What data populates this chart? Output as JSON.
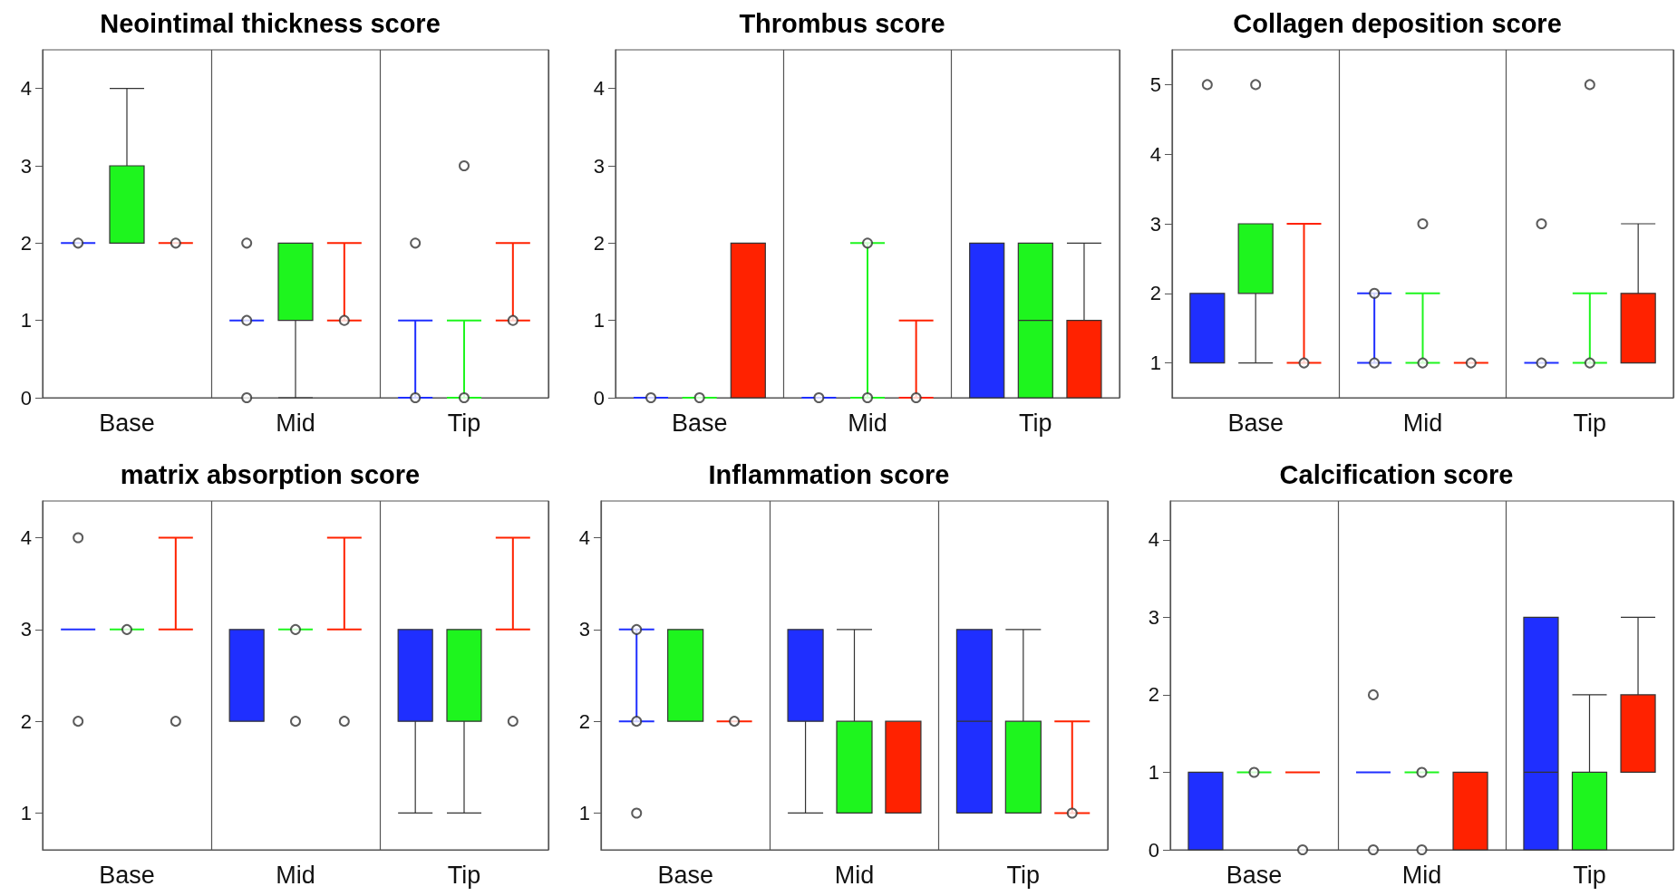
{
  "chart_data": [
    {
      "type": "box",
      "title": "Neointimal thickness score",
      "categories": [
        "Base",
        "Mid",
        "Tip"
      ],
      "ylim": [
        0,
        4.5
      ],
      "yticks": [
        0,
        1,
        2,
        3,
        4
      ],
      "grid": "x",
      "series": [
        {
          "color": "#1f2fff",
          "boxes": [
            {
              "low": 2,
              "q1": 2,
              "median": 2,
              "q3": 2,
              "high": 2,
              "outliers": [
                2
              ]
            },
            {
              "low": 1,
              "q1": 1,
              "median": 1,
              "q3": 1,
              "high": 1,
              "outliers": [
                2,
                1,
                0
              ]
            },
            {
              "low": 0,
              "q1": 0,
              "median": 0,
              "q3": 0,
              "high": 1,
              "outliers": [
                2,
                0
              ]
            }
          ]
        },
        {
          "color": "#1ef51e",
          "boxes": [
            {
              "low": 2,
              "q1": 2,
              "median": 2,
              "q3": 3,
              "high": 4
            },
            {
              "low": 0,
              "q1": 1,
              "median": 1,
              "q3": 2,
              "high": 2
            },
            {
              "low": 0,
              "q1": 0,
              "median": 0,
              "q3": 0,
              "high": 1,
              "outliers": [
                3,
                0
              ]
            }
          ]
        },
        {
          "color": "#ff2200",
          "boxes": [
            {
              "low": 2,
              "q1": 2,
              "median": 2,
              "q3": 2,
              "high": 2,
              "outliers": [
                2
              ]
            },
            {
              "low": 1,
              "q1": 1,
              "median": 1,
              "q3": 1,
              "high": 2,
              "outliers": [
                1
              ]
            },
            {
              "low": 1,
              "q1": 1,
              "median": 1,
              "q3": 1,
              "high": 2,
              "outliers": [
                1
              ]
            }
          ]
        }
      ]
    },
    {
      "type": "box",
      "title": "Thrombus score",
      "categories": [
        "Base",
        "Mid",
        "Tip"
      ],
      "ylim": [
        0,
        4.5
      ],
      "yticks": [
        0,
        1,
        2,
        3,
        4
      ],
      "grid": "x",
      "series": [
        {
          "color": "#1f2fff",
          "boxes": [
            {
              "low": 0,
              "q1": 0,
              "median": 0,
              "q3": 0,
              "high": 0,
              "outliers": [
                0
              ]
            },
            {
              "low": 0,
              "q1": 0,
              "median": 0,
              "q3": 0,
              "high": 0,
              "outliers": [
                0
              ]
            },
            {
              "low": 0,
              "q1": 0,
              "median": 0,
              "q3": 2,
              "high": 2
            }
          ]
        },
        {
          "color": "#1ef51e",
          "boxes": [
            {
              "low": 0,
              "q1": 0,
              "median": 0,
              "q3": 0,
              "high": 0,
              "outliers": [
                0
              ]
            },
            {
              "low": 0,
              "q1": 0,
              "median": 0,
              "q3": 0,
              "high": 2,
              "outliers": [
                2,
                0
              ]
            },
            {
              "low": 0,
              "q1": 0,
              "median": 1,
              "q3": 2,
              "high": 2
            }
          ]
        },
        {
          "color": "#ff2200",
          "boxes": [
            {
              "low": 0,
              "q1": 0,
              "median": 0,
              "q3": 2,
              "high": 2
            },
            {
              "low": 0,
              "q1": 0,
              "median": 0,
              "q3": 0,
              "high": 1,
              "outliers": [
                0
              ]
            },
            {
              "low": 0,
              "q1": 0,
              "median": 0,
              "q3": 1,
              "high": 2
            }
          ]
        }
      ]
    },
    {
      "type": "box",
      "title": "Collagen deposition score",
      "categories": [
        "Base",
        "Mid",
        "Tip"
      ],
      "ylim": [
        0.5,
        5.5
      ],
      "yticks": [
        1,
        2,
        3,
        4,
        5
      ],
      "grid": "x",
      "series": [
        {
          "color": "#1f2fff",
          "boxes": [
            {
              "low": 1,
              "q1": 1,
              "median": 1,
              "q3": 2,
              "high": 2,
              "outliers": [
                5
              ]
            },
            {
              "low": 1,
              "q1": 1,
              "median": 1,
              "q3": 1,
              "high": 2,
              "outliers": [
                2,
                1
              ]
            },
            {
              "low": 1,
              "q1": 1,
              "median": 1,
              "q3": 1,
              "high": 1,
              "outliers": [
                3,
                1
              ]
            }
          ]
        },
        {
          "color": "#1ef51e",
          "boxes": [
            {
              "low": 1,
              "q1": 2,
              "median": 2,
              "q3": 3,
              "high": 3,
              "outliers": [
                5
              ]
            },
            {
              "low": 1,
              "q1": 1,
              "median": 1,
              "q3": 1,
              "high": 2,
              "outliers": [
                3,
                1
              ]
            },
            {
              "low": 1,
              "q1": 1,
              "median": 1,
              "q3": 1,
              "high": 2,
              "outliers": [
                5,
                1
              ]
            }
          ]
        },
        {
          "color": "#ff2200",
          "boxes": [
            {
              "low": 1,
              "q1": 1,
              "median": 1,
              "q3": 1,
              "high": 3,
              "outliers": [
                1
              ]
            },
            {
              "low": 1,
              "q1": 1,
              "median": 1,
              "q3": 1,
              "high": 1,
              "outliers": [
                1
              ]
            },
            {
              "low": 1,
              "q1": 1,
              "median": 1,
              "q3": 2,
              "high": 3
            }
          ]
        }
      ]
    },
    {
      "type": "box",
      "title": "matrix absorption score",
      "categories": [
        "Base",
        "Mid",
        "Tip"
      ],
      "ylim": [
        0.6,
        4.4
      ],
      "yticks": [
        1,
        2,
        3,
        4
      ],
      "grid": "x",
      "series": [
        {
          "color": "#1f2fff",
          "boxes": [
            {
              "low": 3,
              "q1": 3,
              "median": 3,
              "q3": 3,
              "high": 3,
              "outliers": [
                4,
                2
              ]
            },
            {
              "low": 2,
              "q1": 2,
              "median": 3,
              "q3": 3,
              "high": 3
            },
            {
              "low": 1,
              "q1": 2,
              "median": 3,
              "q3": 3,
              "high": 3
            }
          ]
        },
        {
          "color": "#1ef51e",
          "boxes": [
            {
              "low": 3,
              "q1": 3,
              "median": 3,
              "q3": 3,
              "high": 3,
              "outliers": [
                3
              ]
            },
            {
              "low": 3,
              "q1": 3,
              "median": 3,
              "q3": 3,
              "high": 3,
              "outliers": [
                3,
                2
              ]
            },
            {
              "low": 1,
              "q1": 2,
              "median": 3,
              "q3": 3,
              "high": 3
            }
          ]
        },
        {
          "color": "#ff2200",
          "boxes": [
            {
              "low": 3,
              "q1": 3,
              "median": 3,
              "q3": 3,
              "high": 4,
              "outliers": [
                2
              ]
            },
            {
              "low": 3,
              "q1": 3,
              "median": 3,
              "q3": 3,
              "high": 4,
              "outliers": [
                2
              ]
            },
            {
              "low": 3,
              "q1": 3,
              "median": 3,
              "q3": 3,
              "high": 4,
              "outliers": [
                2
              ]
            }
          ]
        }
      ]
    },
    {
      "type": "box",
      "title": "Inflammation score",
      "categories": [
        "Base",
        "Mid",
        "Tip"
      ],
      "ylim": [
        0.6,
        4.4
      ],
      "yticks": [
        1,
        2,
        3,
        4
      ],
      "grid": "x",
      "series": [
        {
          "color": "#1f2fff",
          "boxes": [
            {
              "low": 2,
              "q1": 2,
              "median": 2,
              "q3": 2,
              "high": 3,
              "outliers": [
                3,
                2,
                1
              ]
            },
            {
              "low": 1,
              "q1": 2,
              "median": 3,
              "q3": 3,
              "high": 3
            },
            {
              "low": 1,
              "q1": 1,
              "median": 2,
              "q3": 3,
              "high": 3
            }
          ]
        },
        {
          "color": "#1ef51e",
          "boxes": [
            {
              "low": 2,
              "q1": 2,
              "median": 2,
              "q3": 3,
              "high": 3
            },
            {
              "low": 1,
              "q1": 1,
              "median": 1,
              "q3": 2,
              "high": 3
            },
            {
              "low": 1,
              "q1": 1,
              "median": 1,
              "q3": 2,
              "high": 3
            }
          ]
        },
        {
          "color": "#ff2200",
          "boxes": [
            {
              "low": 2,
              "q1": 2,
              "median": 2,
              "q3": 2,
              "high": 2,
              "outliers": [
                2
              ]
            },
            {
              "low": 1,
              "q1": 1,
              "median": 1,
              "q3": 2,
              "high": 2
            },
            {
              "low": 1,
              "q1": 1,
              "median": 1,
              "q3": 1,
              "high": 2,
              "outliers": [
                1
              ]
            }
          ]
        }
      ]
    },
    {
      "type": "box",
      "title": "Calcification score",
      "categories": [
        "Base",
        "Mid",
        "Tip"
      ],
      "ylim": [
        0,
        4.5
      ],
      "yticks": [
        0,
        1,
        2,
        3,
        4
      ],
      "grid": "x",
      "series": [
        {
          "color": "#1f2fff",
          "boxes": [
            {
              "low": 0,
              "q1": 0,
              "median": 0,
              "q3": 1,
              "high": 1
            },
            {
              "low": 1,
              "q1": 1,
              "median": 1,
              "q3": 1,
              "high": 1,
              "outliers": [
                2,
                0
              ]
            },
            {
              "low": 0,
              "q1": 0,
              "median": 1,
              "q3": 3,
              "high": 3
            }
          ]
        },
        {
          "color": "#1ef51e",
          "boxes": [
            {
              "low": 1,
              "q1": 1,
              "median": 1,
              "q3": 1,
              "high": 1,
              "outliers": [
                1
              ]
            },
            {
              "low": 1,
              "q1": 1,
              "median": 1,
              "q3": 1,
              "high": 1,
              "outliers": [
                1,
                0
              ]
            },
            {
              "low": 0,
              "q1": 0,
              "median": 0,
              "q3": 1,
              "high": 2
            }
          ]
        },
        {
          "color": "#ff2200",
          "boxes": [
            {
              "low": 1,
              "q1": 1,
              "median": 1,
              "q3": 1,
              "high": 1,
              "outliers": [
                0
              ]
            },
            {
              "low": 0,
              "q1": 0,
              "median": 0,
              "q3": 1,
              "high": 1
            },
            {
              "low": 1,
              "q1": 1,
              "median": 1,
              "q3": 2,
              "high": 3
            }
          ]
        }
      ]
    }
  ]
}
